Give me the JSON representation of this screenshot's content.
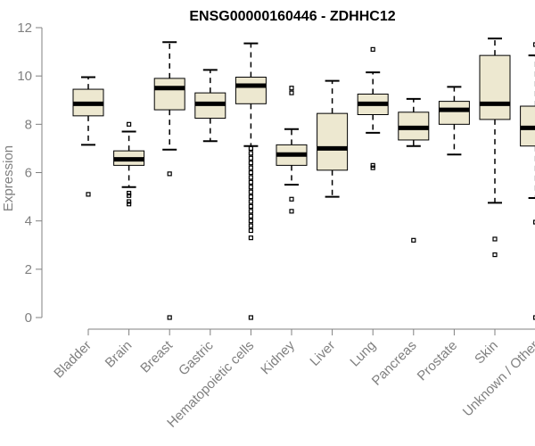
{
  "chart_data": {
    "type": "boxplot",
    "title": "ENSG00000160446 - ZDHHC12",
    "xlabel": "",
    "ylabel": "Expression",
    "ylim": [
      0,
      12
    ],
    "yticks": [
      0,
      2,
      4,
      6,
      8,
      10,
      12
    ],
    "grid": false,
    "colors": {
      "box_fill": "#EDE8D0",
      "stroke": "#000000",
      "axis": "#808080"
    },
    "categories": [
      "Bladder",
      "Brain",
      "Breast",
      "Gastric",
      "Hematopoietic cells",
      "Kidney",
      "Liver",
      "Lung",
      "Pancreas",
      "Prostate",
      "Skin",
      "Unknown / Other"
    ],
    "boxes": [
      {
        "name": "Bladder",
        "whisker_low": 7.15,
        "q1": 8.35,
        "median": 8.85,
        "q3": 9.45,
        "whisker_high": 9.95,
        "outliers": [
          5.1
        ]
      },
      {
        "name": "Brain",
        "whisker_low": 5.4,
        "q1": 6.3,
        "median": 6.55,
        "q3": 6.9,
        "whisker_high": 7.7,
        "outliers": [
          4.7,
          4.8,
          5.05,
          5.15,
          8.0
        ]
      },
      {
        "name": "Breast",
        "whisker_low": 6.95,
        "q1": 8.6,
        "median": 9.5,
        "q3": 9.9,
        "whisker_high": 11.4,
        "outliers": [
          0.0,
          5.95
        ]
      },
      {
        "name": "Gastric",
        "whisker_low": 7.3,
        "q1": 8.25,
        "median": 8.85,
        "q3": 9.3,
        "whisker_high": 10.25,
        "outliers": []
      },
      {
        "name": "Hematopoietic cells",
        "whisker_low": 7.1,
        "q1": 8.85,
        "median": 9.6,
        "q3": 9.95,
        "whisker_high": 11.35,
        "outliers": [
          0.0,
          3.3,
          3.6,
          3.8,
          4.0,
          4.2,
          4.4,
          4.6,
          4.8,
          5.0,
          5.2,
          5.4,
          5.6,
          5.8,
          6.0,
          6.2,
          6.4,
          6.6,
          6.8,
          7.0
        ]
      },
      {
        "name": "Kidney",
        "whisker_low": 5.5,
        "q1": 6.3,
        "median": 6.75,
        "q3": 7.15,
        "whisker_high": 7.8,
        "outliers": [
          4.4,
          4.9,
          9.3,
          9.5
        ]
      },
      {
        "name": "Liver",
        "whisker_low": 5.0,
        "q1": 6.1,
        "median": 7.0,
        "q3": 8.45,
        "whisker_high": 9.8,
        "outliers": []
      },
      {
        "name": "Lung",
        "whisker_low": 7.65,
        "q1": 8.4,
        "median": 8.85,
        "q3": 9.25,
        "whisker_high": 10.15,
        "outliers": [
          6.2,
          6.3,
          11.1
        ]
      },
      {
        "name": "Pancreas",
        "whisker_low": 7.1,
        "q1": 7.35,
        "median": 7.85,
        "q3": 8.5,
        "whisker_high": 9.05,
        "outliers": [
          3.2
        ]
      },
      {
        "name": "Prostate",
        "whisker_low": 6.75,
        "q1": 8.0,
        "median": 8.6,
        "q3": 8.95,
        "whisker_high": 9.55,
        "outliers": []
      },
      {
        "name": "Skin",
        "whisker_low": 4.75,
        "q1": 8.2,
        "median": 8.85,
        "q3": 10.85,
        "whisker_high": 11.55,
        "outliers": [
          2.6,
          3.25
        ]
      },
      {
        "name": "Unknown / Other",
        "whisker_low": 4.95,
        "q1": 7.1,
        "median": 7.85,
        "q3": 8.75,
        "whisker_high": 10.85,
        "outliers": [
          0.0,
          3.95,
          11.3
        ]
      }
    ]
  }
}
